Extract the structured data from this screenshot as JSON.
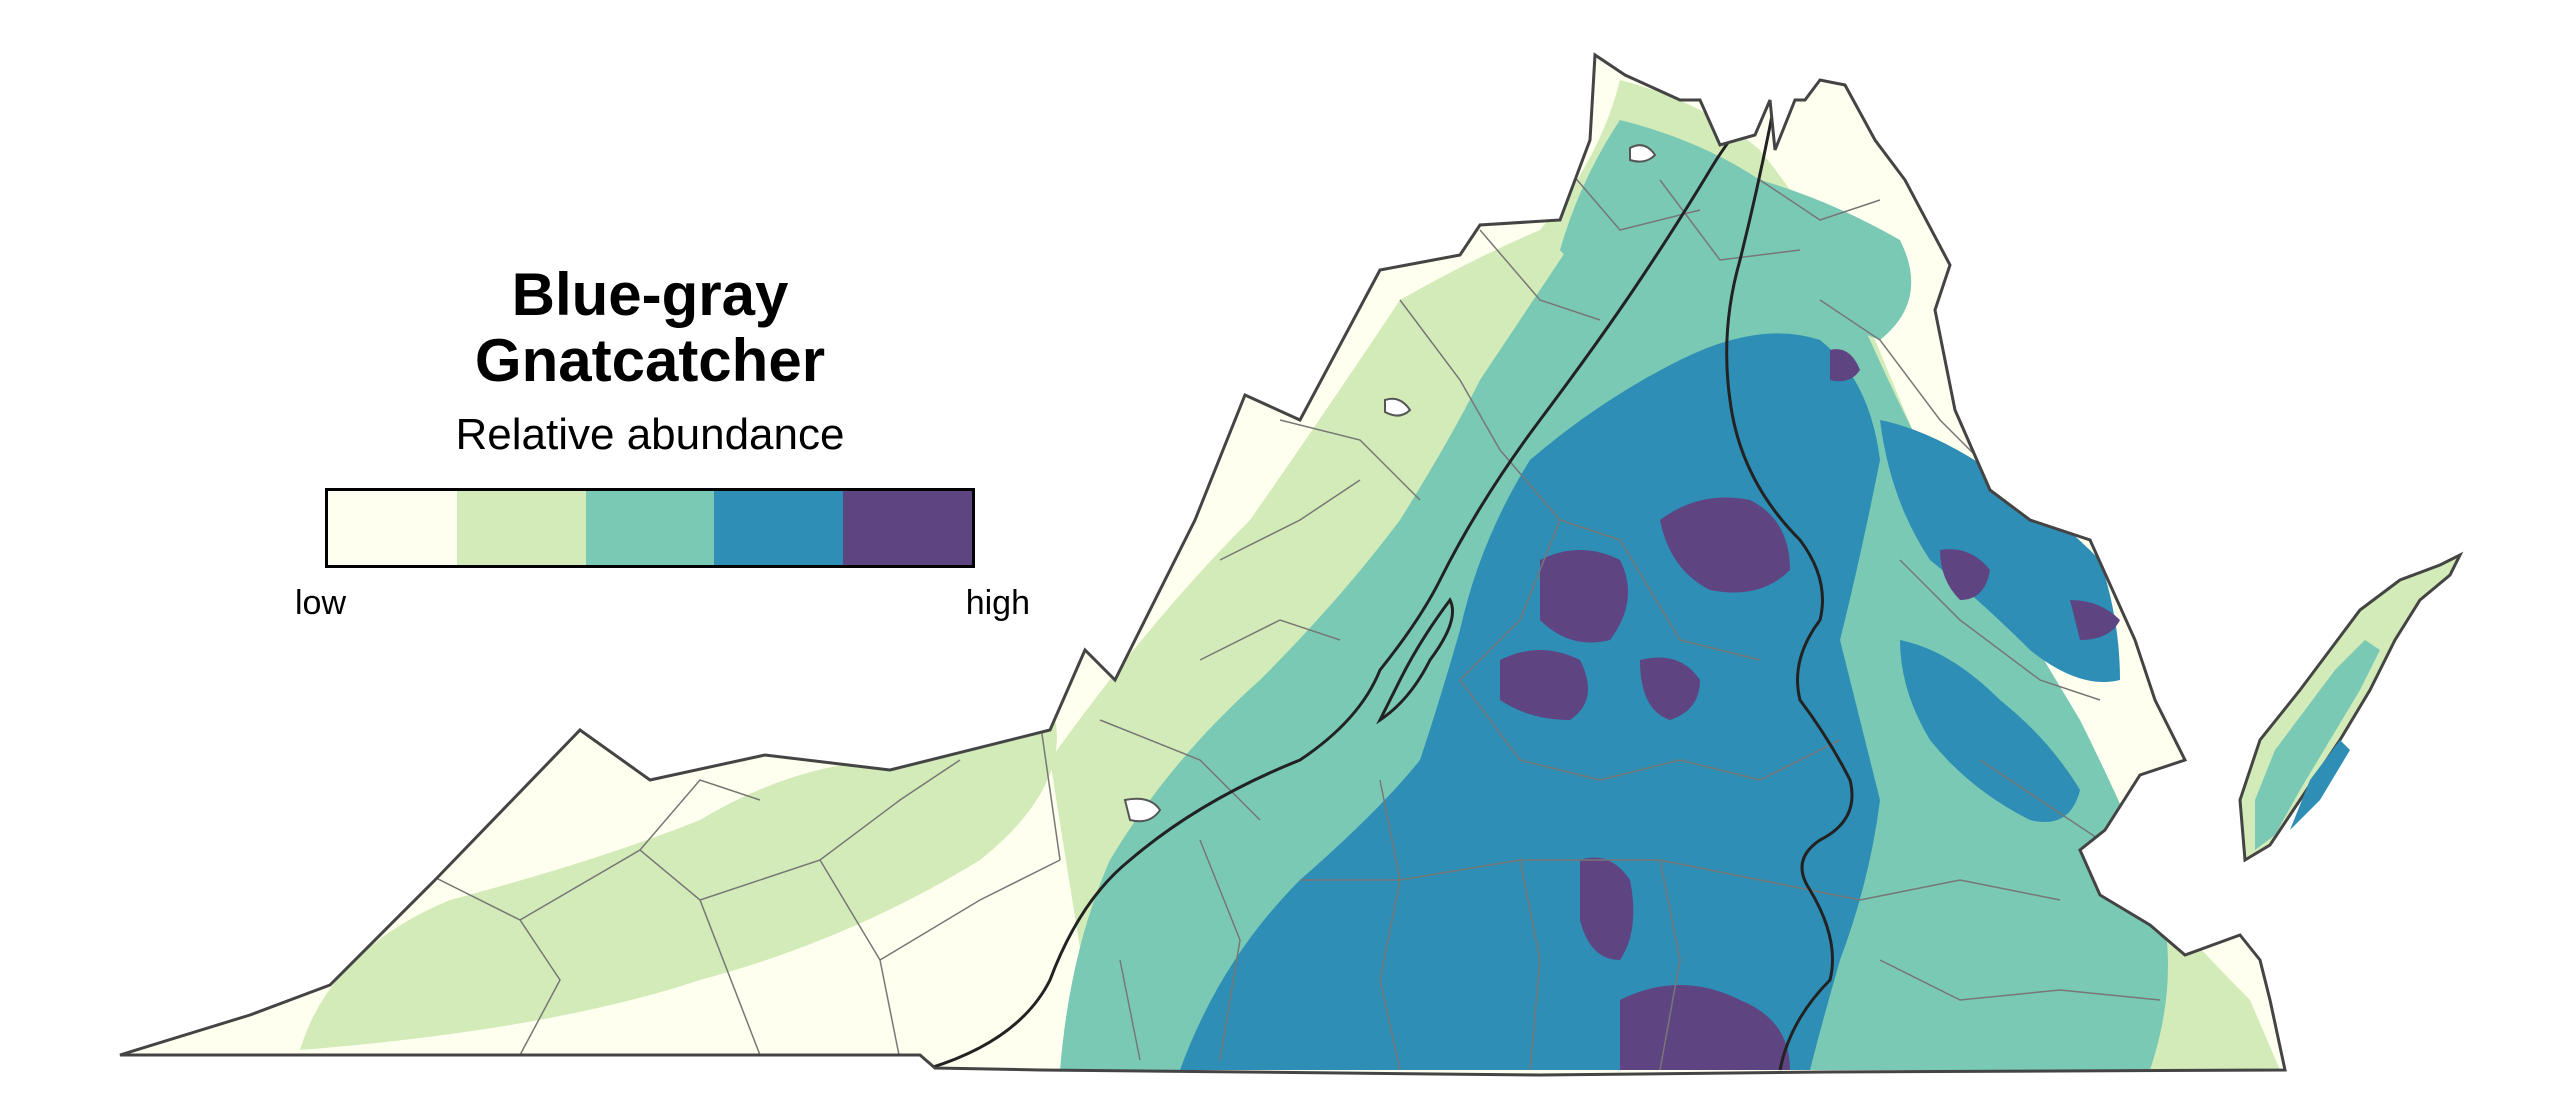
{
  "legend": {
    "title_line1": "Blue-gray",
    "title_line2": "Gnatcatcher",
    "subtitle": "Relative abundance",
    "low_label": "low",
    "high_label": "high",
    "bins": [
      {
        "level": 1,
        "color": "#fffff0"
      },
      {
        "level": 2,
        "color": "#d3ebb8"
      },
      {
        "level": 3,
        "color": "#7ac9b5"
      },
      {
        "level": 4,
        "color": "#2e8eb5"
      },
      {
        "level": 5,
        "color": "#5f4482"
      }
    ]
  },
  "map": {
    "outline_color": "#444444",
    "county_line_color": "#777777",
    "region_line_color": "#222222"
  }
}
